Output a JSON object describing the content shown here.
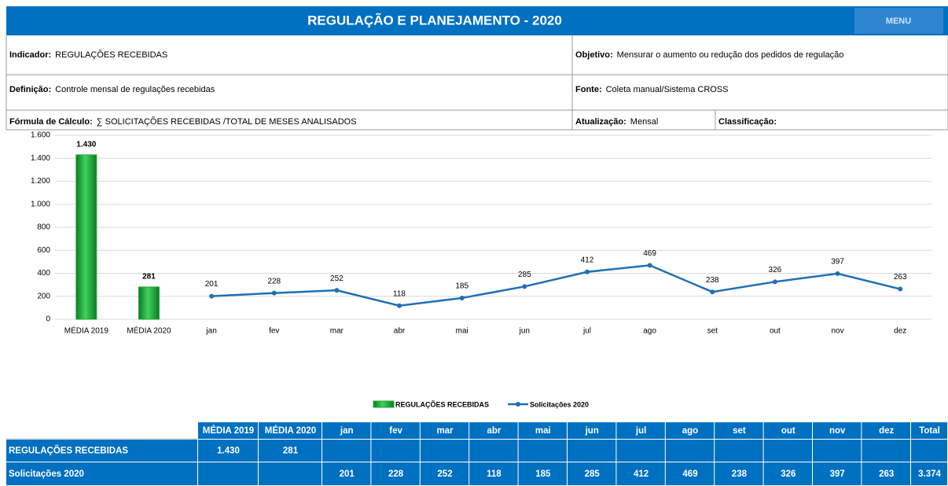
{
  "header": {
    "title": "REGULAÇÃO E PLANEJAMENTO - 2020",
    "menu": "MENU"
  },
  "info": {
    "indicador": {
      "label": "Indicador:",
      "value": "REGULAÇÕES RECEBIDAS"
    },
    "objetivo": {
      "label": "Objetivo:",
      "value": "Mensurar o aumento ou redução dos pedidos de regulação"
    },
    "definicao": {
      "label": "Definição:",
      "value": "Controle mensal de regulações recebidas"
    },
    "fonte": {
      "label": "Fonte:",
      "value": "Coleta manual/Sistema CROSS"
    },
    "formula": {
      "label": "Fórmula de Cálculo:",
      "value": "∑ SOLICITAÇÕES RECEBIDAS /TOTAL DE MESES ANALISADOS"
    },
    "atualizacao": {
      "label": "Atualização:",
      "value": "Mensal"
    },
    "classificacao": {
      "label": "Classificação:"
    }
  },
  "chart_data": {
    "type": "combo",
    "categories": [
      "MÉDIA 2019",
      "MÉDIA 2020",
      "jan",
      "fev",
      "mar",
      "abr",
      "mai",
      "jun",
      "jul",
      "ago",
      "set",
      "out",
      "nov",
      "dez"
    ],
    "series": [
      {
        "name": "REGULAÇÕES RECEBIDAS",
        "type": "bar",
        "color": "#1fa83a",
        "values": [
          1430,
          281,
          null,
          null,
          null,
          null,
          null,
          null,
          null,
          null,
          null,
          null,
          null,
          null
        ],
        "value_labels": [
          "1.430",
          "281",
          null,
          null,
          null,
          null,
          null,
          null,
          null,
          null,
          null,
          null,
          null,
          null
        ]
      },
      {
        "name": "Solicitações 2020",
        "type": "line",
        "color": "#1f6fb5",
        "values": [
          null,
          null,
          201,
          228,
          252,
          118,
          185,
          285,
          412,
          469,
          238,
          326,
          397,
          263
        ]
      }
    ],
    "ylim": [
      0,
      1600
    ],
    "yticks": [
      0,
      200,
      400,
      600,
      800,
      {
        "value": 1000,
        "label": "1.000"
      },
      {
        "value": 1200,
        "label": "1.200"
      },
      {
        "value": 1400,
        "label": "1.400"
      },
      {
        "value": 1600,
        "label": "1.600"
      }
    ],
    "grid": true,
    "legend": "bottom"
  },
  "table": {
    "header": [
      "MÉDIA 2019",
      "MÉDIA 2020",
      "jan",
      "fev",
      "mar",
      "abr",
      "mai",
      "jun",
      "jul",
      "ago",
      "set",
      "out",
      "nov",
      "dez",
      "Total"
    ],
    "rows": [
      [
        "REGULAÇÕES RECEBIDAS",
        "1.430",
        "281"
      ],
      [
        "Solicitações 2020",
        null,
        null,
        "201",
        "228",
        "252",
        "118",
        "185",
        "285",
        "412",
        "469",
        "238",
        "326",
        "397",
        "263",
        "3.374"
      ]
    ]
  }
}
